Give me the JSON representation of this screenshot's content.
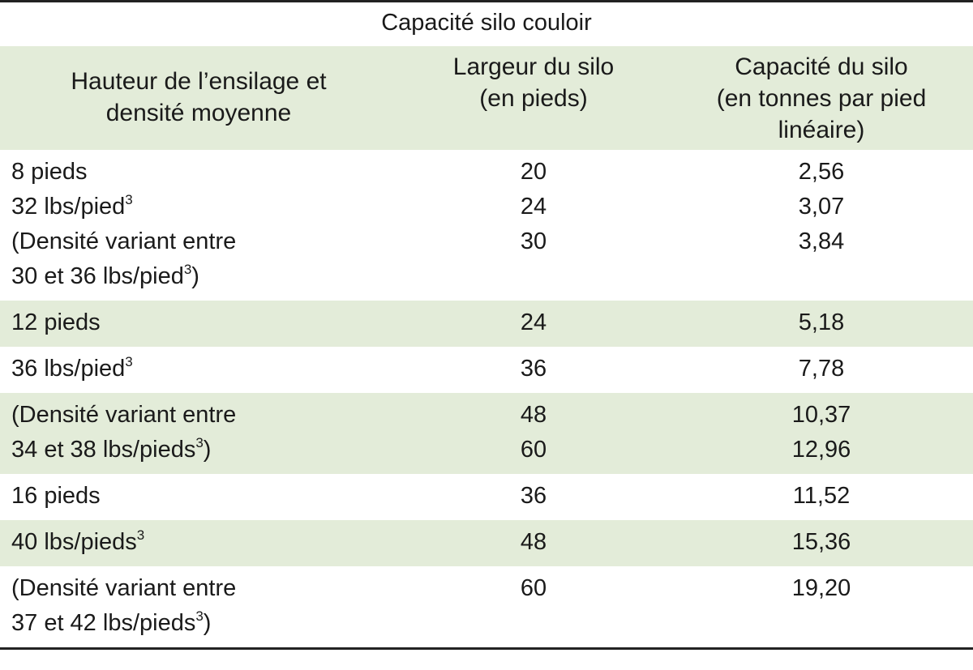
{
  "title": "Capacité silo couloir",
  "table": {
    "headers": [
      [
        "Hauteur de l’ensilage et",
        "densité moyenne"
      ],
      [
        "Largeur du silo",
        "(en pieds)"
      ],
      [
        "Capacité du silo",
        "(en tonnes par pied",
        "linéaire)"
      ]
    ],
    "rows": [
      [
        [
          "8 pieds",
          {
            "text": "32 lbs/pied",
            "sup": "3"
          },
          "(Densité variant entre",
          {
            "text": "30 et 36 lbs/pied",
            "sup": "3",
            "after": ")"
          }
        ],
        [
          "20",
          "24",
          "30"
        ],
        [
          "2,56",
          "3,07",
          "3,84"
        ]
      ],
      [
        [
          "12 pieds"
        ],
        [
          "24"
        ],
        [
          "5,18"
        ]
      ],
      [
        [
          {
            "text": "36 lbs/pied",
            "sup": "3"
          }
        ],
        [
          "36"
        ],
        [
          "7,78"
        ]
      ],
      [
        [
          "(Densité variant entre",
          {
            "text": "34 et 38 lbs/pieds",
            "sup": "3",
            "after": ")"
          }
        ],
        [
          "48",
          "60"
        ],
        [
          "10,37",
          "12,96"
        ]
      ],
      [
        [
          "16 pieds"
        ],
        [
          "36"
        ],
        [
          "11,52"
        ]
      ],
      [
        [
          {
            "text": "40 lbs/pieds",
            "sup": "3"
          }
        ],
        [
          "48"
        ],
        [
          "15,36"
        ]
      ],
      [
        [
          "(Densité variant entre",
          {
            "text": "37 et 42 lbs/pieds",
            "sup": "3",
            "after": ")"
          }
        ],
        [
          "60"
        ],
        [
          "19,20"
        ]
      ]
    ]
  }
}
